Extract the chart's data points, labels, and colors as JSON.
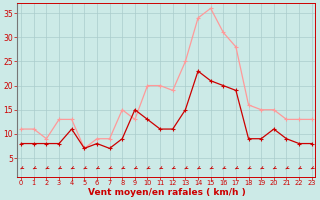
{
  "x": [
    0,
    1,
    2,
    3,
    4,
    5,
    6,
    7,
    8,
    9,
    10,
    11,
    12,
    13,
    14,
    15,
    16,
    17,
    18,
    19,
    20,
    21,
    22,
    23
  ],
  "vent_moyen": [
    8,
    8,
    8,
    8,
    11,
    7,
    8,
    7,
    9,
    15,
    13,
    11,
    11,
    15,
    23,
    21,
    20,
    19,
    9,
    9,
    11,
    9,
    8,
    8
  ],
  "rafales": [
    11,
    11,
    9,
    13,
    13,
    7,
    9,
    9,
    15,
    13,
    20,
    20,
    19,
    25,
    34,
    36,
    31,
    28,
    16,
    15,
    15,
    13,
    13,
    13
  ],
  "bg_color": "#cceae7",
  "grid_color": "#aacccc",
  "moyen_color": "#cc0000",
  "rafales_color": "#ff9999",
  "xlabel": "Vent moyen/en rafales ( km/h )",
  "yticks": [
    5,
    10,
    15,
    20,
    25,
    30,
    35
  ],
  "ylim": [
    1,
    37
  ],
  "xlim": [
    -0.3,
    23.3
  ]
}
